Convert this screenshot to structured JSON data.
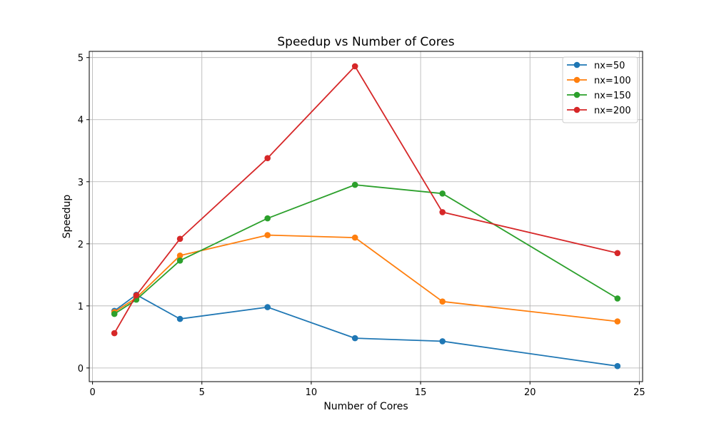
{
  "chart_data": {
    "type": "line",
    "title": "Speedup vs Number of Cores",
    "xlabel": "Number of Cores",
    "ylabel": "Speedup",
    "x": [
      1,
      2,
      4,
      8,
      12,
      16,
      24
    ],
    "xlim": [
      -0.15,
      25.15
    ],
    "ylim": [
      -0.22,
      5.1
    ],
    "xticks": [
      0,
      5,
      10,
      15,
      20,
      25
    ],
    "yticks": [
      0,
      1,
      2,
      3,
      4,
      5
    ],
    "grid": true,
    "legend_position": "top-right",
    "series": [
      {
        "name": "nx=50",
        "color": "#1f77b4",
        "values": [
          0.92,
          1.18,
          0.79,
          0.98,
          0.48,
          0.43,
          0.03
        ]
      },
      {
        "name": "nx=100",
        "color": "#ff7f0e",
        "values": [
          0.9,
          1.13,
          1.81,
          2.14,
          2.1,
          1.07,
          0.75
        ]
      },
      {
        "name": "nx=150",
        "color": "#2ca02c",
        "values": [
          0.87,
          1.1,
          1.73,
          2.41,
          2.95,
          2.81,
          1.12
        ]
      },
      {
        "name": "nx=200",
        "color": "#d62728",
        "values": [
          0.56,
          1.17,
          2.08,
          3.38,
          4.86,
          2.51,
          1.85
        ]
      }
    ]
  }
}
